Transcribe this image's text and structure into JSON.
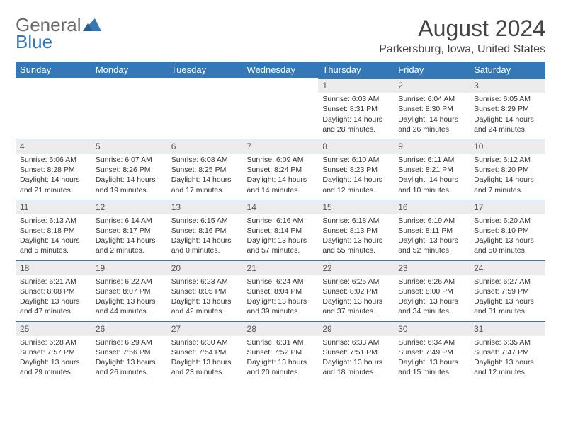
{
  "logo": {
    "text1": "General",
    "text2": "Blue"
  },
  "title": "August 2024",
  "location": "Parkersburg, Iowa, United States",
  "colors": {
    "accent": "#3478b8",
    "header_text": "#ffffff",
    "daynum_bg": "#ececec",
    "text": "#333333",
    "logo_gray": "#6b6b6b"
  },
  "weekdays": [
    "Sunday",
    "Monday",
    "Tuesday",
    "Wednesday",
    "Thursday",
    "Friday",
    "Saturday"
  ],
  "weeks": [
    [
      null,
      null,
      null,
      null,
      {
        "n": "1",
        "sr": "6:03 AM",
        "ss": "8:31 PM",
        "dl": "14 hours and 28 minutes."
      },
      {
        "n": "2",
        "sr": "6:04 AM",
        "ss": "8:30 PM",
        "dl": "14 hours and 26 minutes."
      },
      {
        "n": "3",
        "sr": "6:05 AM",
        "ss": "8:29 PM",
        "dl": "14 hours and 24 minutes."
      }
    ],
    [
      {
        "n": "4",
        "sr": "6:06 AM",
        "ss": "8:28 PM",
        "dl": "14 hours and 21 minutes."
      },
      {
        "n": "5",
        "sr": "6:07 AM",
        "ss": "8:26 PM",
        "dl": "14 hours and 19 minutes."
      },
      {
        "n": "6",
        "sr": "6:08 AM",
        "ss": "8:25 PM",
        "dl": "14 hours and 17 minutes."
      },
      {
        "n": "7",
        "sr": "6:09 AM",
        "ss": "8:24 PM",
        "dl": "14 hours and 14 minutes."
      },
      {
        "n": "8",
        "sr": "6:10 AM",
        "ss": "8:23 PM",
        "dl": "14 hours and 12 minutes."
      },
      {
        "n": "9",
        "sr": "6:11 AM",
        "ss": "8:21 PM",
        "dl": "14 hours and 10 minutes."
      },
      {
        "n": "10",
        "sr": "6:12 AM",
        "ss": "8:20 PM",
        "dl": "14 hours and 7 minutes."
      }
    ],
    [
      {
        "n": "11",
        "sr": "6:13 AM",
        "ss": "8:18 PM",
        "dl": "14 hours and 5 minutes."
      },
      {
        "n": "12",
        "sr": "6:14 AM",
        "ss": "8:17 PM",
        "dl": "14 hours and 2 minutes."
      },
      {
        "n": "13",
        "sr": "6:15 AM",
        "ss": "8:16 PM",
        "dl": "14 hours and 0 minutes."
      },
      {
        "n": "14",
        "sr": "6:16 AM",
        "ss": "8:14 PM",
        "dl": "13 hours and 57 minutes."
      },
      {
        "n": "15",
        "sr": "6:18 AM",
        "ss": "8:13 PM",
        "dl": "13 hours and 55 minutes."
      },
      {
        "n": "16",
        "sr": "6:19 AM",
        "ss": "8:11 PM",
        "dl": "13 hours and 52 minutes."
      },
      {
        "n": "17",
        "sr": "6:20 AM",
        "ss": "8:10 PM",
        "dl": "13 hours and 50 minutes."
      }
    ],
    [
      {
        "n": "18",
        "sr": "6:21 AM",
        "ss": "8:08 PM",
        "dl": "13 hours and 47 minutes."
      },
      {
        "n": "19",
        "sr": "6:22 AM",
        "ss": "8:07 PM",
        "dl": "13 hours and 44 minutes."
      },
      {
        "n": "20",
        "sr": "6:23 AM",
        "ss": "8:05 PM",
        "dl": "13 hours and 42 minutes."
      },
      {
        "n": "21",
        "sr": "6:24 AM",
        "ss": "8:04 PM",
        "dl": "13 hours and 39 minutes."
      },
      {
        "n": "22",
        "sr": "6:25 AM",
        "ss": "8:02 PM",
        "dl": "13 hours and 37 minutes."
      },
      {
        "n": "23",
        "sr": "6:26 AM",
        "ss": "8:00 PM",
        "dl": "13 hours and 34 minutes."
      },
      {
        "n": "24",
        "sr": "6:27 AM",
        "ss": "7:59 PM",
        "dl": "13 hours and 31 minutes."
      }
    ],
    [
      {
        "n": "25",
        "sr": "6:28 AM",
        "ss": "7:57 PM",
        "dl": "13 hours and 29 minutes."
      },
      {
        "n": "26",
        "sr": "6:29 AM",
        "ss": "7:56 PM",
        "dl": "13 hours and 26 minutes."
      },
      {
        "n": "27",
        "sr": "6:30 AM",
        "ss": "7:54 PM",
        "dl": "13 hours and 23 minutes."
      },
      {
        "n": "28",
        "sr": "6:31 AM",
        "ss": "7:52 PM",
        "dl": "13 hours and 20 minutes."
      },
      {
        "n": "29",
        "sr": "6:33 AM",
        "ss": "7:51 PM",
        "dl": "13 hours and 18 minutes."
      },
      {
        "n": "30",
        "sr": "6:34 AM",
        "ss": "7:49 PM",
        "dl": "13 hours and 15 minutes."
      },
      {
        "n": "31",
        "sr": "6:35 AM",
        "ss": "7:47 PM",
        "dl": "13 hours and 12 minutes."
      }
    ]
  ],
  "labels": {
    "sunrise": "Sunrise:",
    "sunset": "Sunset:",
    "daylight": "Daylight:"
  }
}
